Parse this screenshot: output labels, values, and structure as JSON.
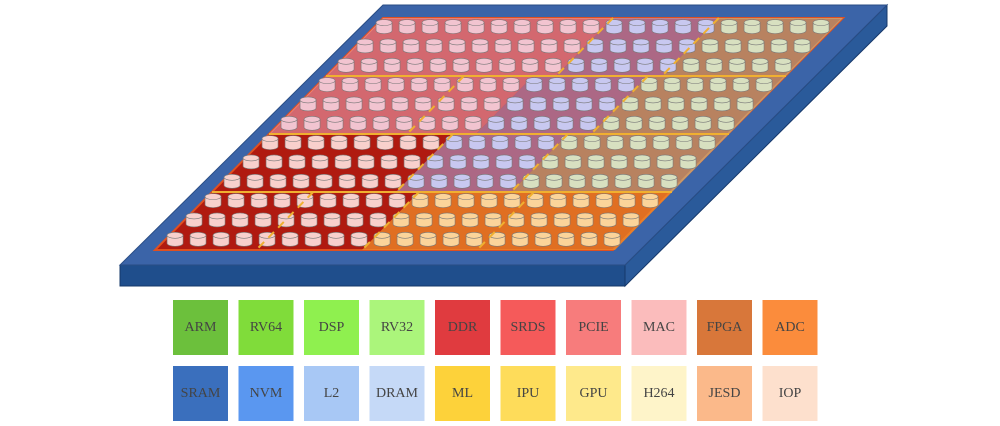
{
  "legend": {
    "items": [
      {
        "label": "ARM",
        "color": "#6cc03c"
      },
      {
        "label": "RV64",
        "color": "#80dc3a"
      },
      {
        "label": "DSP",
        "color": "#8ff04f"
      },
      {
        "label": "RV32",
        "color": "#abf57b"
      },
      {
        "label": "DDR",
        "color": "#e03b3f"
      },
      {
        "label": "SRDS",
        "color": "#f55a5a"
      },
      {
        "label": "PCIE",
        "color": "#f77c7c"
      },
      {
        "label": "MAC",
        "color": "#fbbcbc"
      },
      {
        "label": "FPGA",
        "color": "#d8773a"
      },
      {
        "label": "ADC",
        "color": "#fb8c3c"
      },
      {
        "label": "SRAM",
        "color": "#3a6fbd"
      },
      {
        "label": "NVM",
        "color": "#5a97f0"
      },
      {
        "label": "L2",
        "color": "#a8c8f5"
      },
      {
        "label": "DRAM",
        "color": "#c5d9f7"
      },
      {
        "label": "ML",
        "color": "#fdd23a"
      },
      {
        "label": "IPU",
        "color": "#fedc5a"
      },
      {
        "label": "GPU",
        "color": "#fee98b"
      },
      {
        "label": "H264",
        "color": "#fef4c9"
      },
      {
        "label": "JESD",
        "color": "#fbb98a"
      },
      {
        "label": "IOP",
        "color": "#fde0cd"
      }
    ]
  }
}
